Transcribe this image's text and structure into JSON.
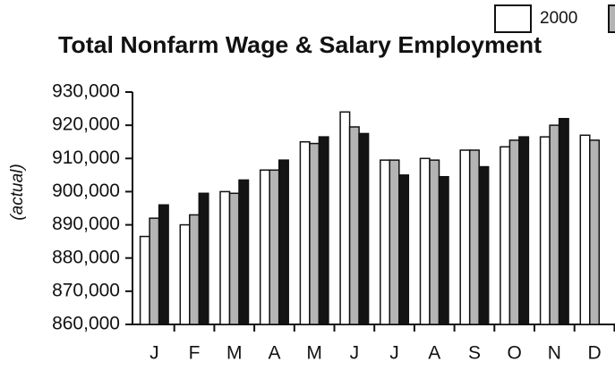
{
  "chart_data": {
    "type": "bar",
    "title": "Total Nonfarm Wage & Salary Employment",
    "y_label": "(actual)",
    "categories": [
      "J",
      "F",
      "M",
      "A",
      "M",
      "J",
      "J",
      "A",
      "S",
      "O",
      "N",
      "D"
    ],
    "series": [
      {
        "name": "2000",
        "color": "#ffffff",
        "values": [
          886500,
          890000,
          900000,
          906500,
          915000,
          924000,
          909500,
          910000,
          912500,
          913500,
          916500,
          917000
        ]
      },
      {
        "color": "#b4b4b4",
        "values": [
          892000,
          893000,
          899500,
          906500,
          914500,
          919500,
          909500,
          909500,
          912500,
          915500,
          920000,
          915500
        ]
      },
      {
        "color": "#141414",
        "values": [
          896000,
          899500,
          903500,
          909500,
          916500,
          917500,
          905000,
          904500,
          907500,
          916500,
          922000,
          null
        ]
      }
    ],
    "ylim": [
      860000,
      930000
    ],
    "yticks": [
      {
        "value": 860000,
        "label": "860,000"
      },
      {
        "value": 870000,
        "label": "870,000"
      },
      {
        "value": 880000,
        "label": "880,000"
      },
      {
        "value": 890000,
        "label": "890,000"
      },
      {
        "value": 900000,
        "label": "900,000"
      },
      {
        "value": 910000,
        "label": "910,000"
      },
      {
        "value": 920000,
        "label": "920,000"
      },
      {
        "value": 930000,
        "label": "930,000"
      }
    ]
  }
}
